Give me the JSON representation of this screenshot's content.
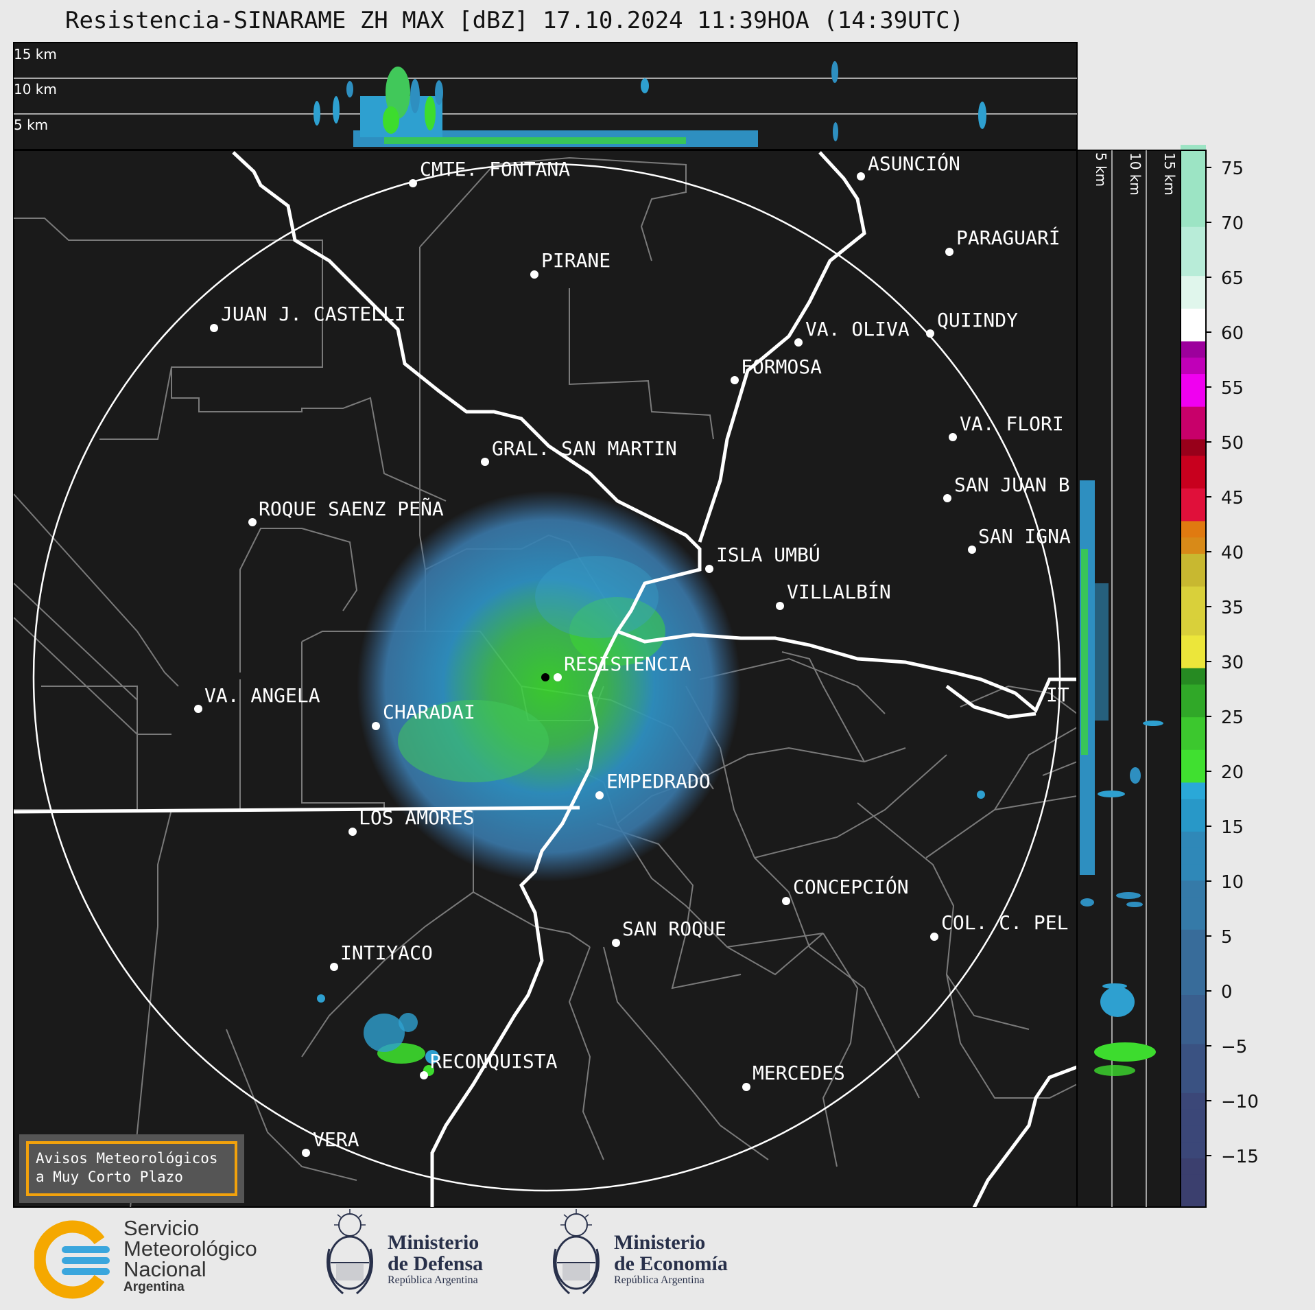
{
  "title": "Resistencia-SINARAME ZH MAX [dBZ] 17.10.2024 11:39HOA (14:39UTC)",
  "top_profile_labels": [
    "15 km",
    "10 km",
    "5 km"
  ],
  "side_profile_labels": [
    "5 km",
    "10 km",
    "15 km"
  ],
  "cities": [
    {
      "name": "CMTE. FONTANA"
    },
    {
      "name": "ASUNCIÓN"
    },
    {
      "name": "PIRANE"
    },
    {
      "name": "PARAGUARÍ"
    },
    {
      "name": "JUAN J. CASTELLI"
    },
    {
      "name": "VA. OLIVA"
    },
    {
      "name": "QUIINDY"
    },
    {
      "name": "FORMOSA"
    },
    {
      "name": "VA. FLORI"
    },
    {
      "name": "GRAL. SAN MARTIN"
    },
    {
      "name": "SAN JUAN B"
    },
    {
      "name": "ROQUE SAENZ PEÑA"
    },
    {
      "name": "SAN IGNA"
    },
    {
      "name": "ISLA UMBÚ"
    },
    {
      "name": "VILLALBÍN"
    },
    {
      "name": "RESISTENCIA"
    },
    {
      "name": "VA. ANGELA"
    },
    {
      "name": "CHARADAI"
    },
    {
      "name": "IT"
    },
    {
      "name": "EMPEDRADO"
    },
    {
      "name": "LOS AMORES"
    },
    {
      "name": "CONCEPCIÓN"
    },
    {
      "name": "SAN ROQUE"
    },
    {
      "name": "COL. C. PEL"
    },
    {
      "name": "INTIYACO"
    },
    {
      "name": "RECONQUISTA"
    },
    {
      "name": "MERCEDES"
    },
    {
      "name": "VERA"
    }
  ],
  "colorbar": {
    "ticks": [
      "75",
      "70",
      "65",
      "60",
      "55",
      "50",
      "45",
      "40",
      "35",
      "30",
      "25",
      "20",
      "15",
      "10",
      "5",
      "0",
      "−5",
      "−10",
      "−15"
    ],
    "range": [
      -20,
      77
    ]
  },
  "warning_box": {
    "line1": "Avisos Meteorológicos",
    "line2": "a Muy Corto Plazo",
    "border_color": "#f2a20c"
  },
  "logos": {
    "smn": {
      "line1": "Servicio",
      "line2": "Meteorológico",
      "line3": "Nacional",
      "sub": "Argentina"
    },
    "defensa": {
      "line1": "Ministerio",
      "line2": "de Defensa",
      "sub": "República Argentina"
    },
    "economia": {
      "line1": "Ministerio",
      "line2": "de Economía",
      "sub": "República Argentina"
    }
  },
  "colors": {
    "map_bg": "#1a1a1a",
    "rivers": "#ffffff",
    "borders": "#7a7a7a",
    "echo_blue": "#2e8fc0",
    "echo_green": "#3ddc2e"
  }
}
